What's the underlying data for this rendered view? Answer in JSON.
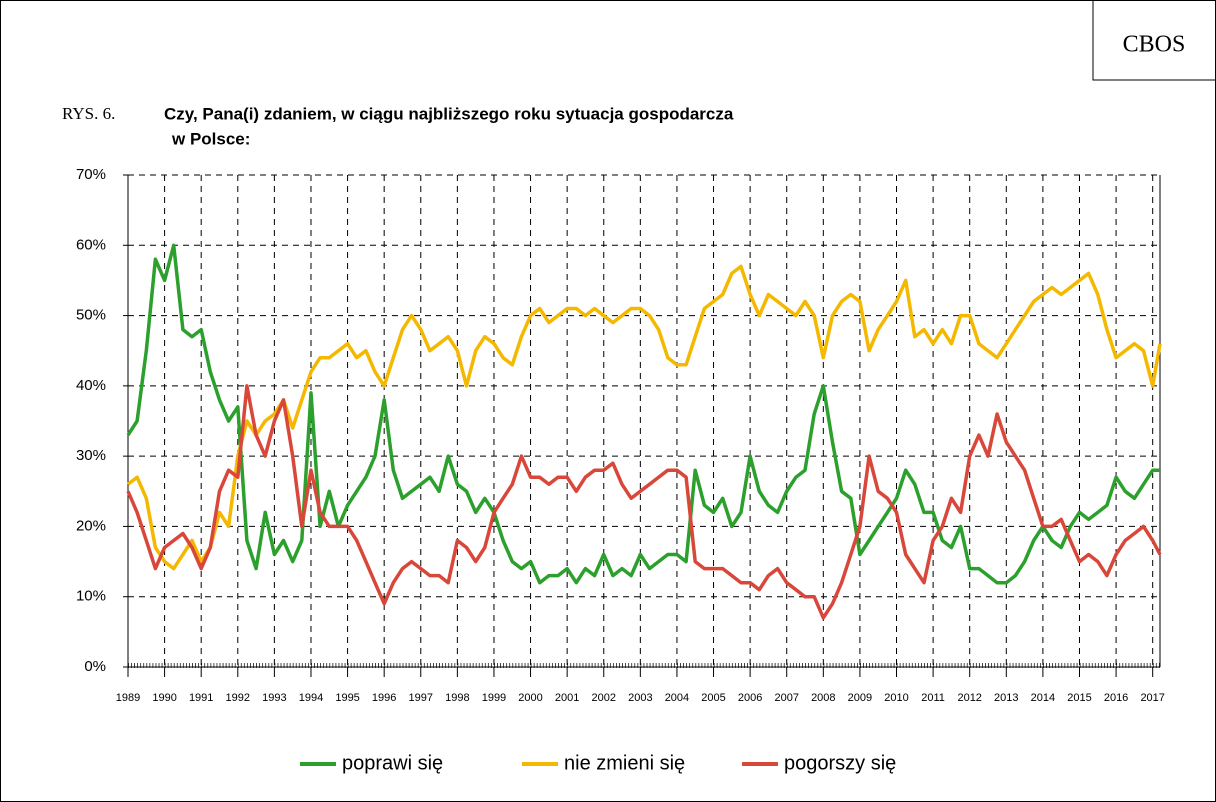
{
  "chart_data": {
    "type": "line",
    "badge": "CBOS",
    "figure_label": "RYS. 6.",
    "title": [
      "Czy, Pana(i) zdaniem, w ciągu najbliższego roku sytuacja gospodarcza",
      "w Polsce:"
    ],
    "x": [
      1989,
      1989.25,
      1989.5,
      1989.75,
      1990,
      1990.25,
      1990.5,
      1990.75,
      1991,
      1991.25,
      1991.5,
      1991.75,
      1992,
      1992.25,
      1992.5,
      1992.75,
      1993,
      1993.25,
      1993.5,
      1993.75,
      1994,
      1994.25,
      1994.5,
      1994.75,
      1995,
      1995.25,
      1995.5,
      1995.75,
      1996,
      1996.25,
      1996.5,
      1996.75,
      1997,
      1997.25,
      1997.5,
      1997.75,
      1998,
      1998.25,
      1998.5,
      1998.75,
      1999,
      1999.25,
      1999.5,
      1999.75,
      2000,
      2000.25,
      2000.5,
      2000.75,
      2001,
      2001.25,
      2001.5,
      2001.75,
      2002,
      2002.25,
      2002.5,
      2002.75,
      2003,
      2003.25,
      2003.5,
      2003.75,
      2004,
      2004.25,
      2004.5,
      2004.75,
      2005,
      2005.25,
      2005.5,
      2005.75,
      2006,
      2006.25,
      2006.5,
      2006.75,
      2007,
      2007.25,
      2007.5,
      2007.75,
      2008,
      2008.25,
      2008.5,
      2008.75,
      2009,
      2009.25,
      2009.5,
      2009.75,
      2010,
      2010.25,
      2010.5,
      2010.75,
      2011,
      2011.25,
      2011.5,
      2011.75,
      2012,
      2012.25,
      2012.5,
      2012.75,
      2013,
      2013.25,
      2013.5,
      2013.75,
      2014,
      2014.25,
      2014.5,
      2014.75,
      2015,
      2015.25,
      2015.5,
      2015.75,
      2016,
      2016.25,
      2016.5,
      2016.75,
      2017,
      2017.2
    ],
    "series": [
      {
        "name": "poprawi się",
        "color": "#2ca02c",
        "values": [
          33,
          35,
          45,
          58,
          55,
          60,
          48,
          47,
          48,
          42,
          38,
          35,
          37,
          18,
          14,
          22,
          16,
          18,
          15,
          18,
          39,
          20,
          25,
          20,
          23,
          25,
          27,
          30,
          38,
          28,
          24,
          25,
          26,
          27,
          25,
          30,
          26,
          25,
          22,
          24,
          22,
          18,
          15,
          14,
          15,
          12,
          13,
          13,
          14,
          12,
          14,
          13,
          16,
          13,
          14,
          13,
          16,
          14,
          15,
          16,
          16,
          15,
          28,
          23,
          22,
          24,
          20,
          22,
          30,
          25,
          23,
          22,
          25,
          27,
          28,
          36,
          40,
          32,
          25,
          24,
          16,
          18,
          20,
          22,
          24,
          28,
          26,
          22,
          22,
          18,
          17,
          20,
          14,
          14,
          13,
          12,
          12,
          13,
          15,
          18,
          20,
          18,
          17,
          20,
          22,
          21,
          22,
          23,
          27,
          25,
          24,
          26,
          28,
          28
        ]
      },
      {
        "name": "nie zmieni się",
        "color": "#f5b800",
        "values": [
          26,
          27,
          24,
          17,
          15,
          14,
          16,
          18,
          15,
          17,
          22,
          20,
          30,
          35,
          33,
          35,
          36,
          38,
          34,
          38,
          42,
          44,
          44,
          45,
          46,
          44,
          45,
          42,
          40,
          44,
          48,
          50,
          48,
          45,
          46,
          47,
          45,
          40,
          45,
          47,
          46,
          44,
          43,
          47,
          50,
          51,
          49,
          50,
          51,
          51,
          50,
          51,
          50,
          49,
          50,
          51,
          51,
          50,
          48,
          44,
          43,
          43,
          47,
          51,
          52,
          53,
          56,
          57,
          53,
          50,
          53,
          52,
          51,
          50,
          52,
          50,
          44,
          50,
          52,
          53,
          52,
          45,
          48,
          50,
          52,
          55,
          47,
          48,
          46,
          48,
          46,
          50,
          50,
          46,
          45,
          44,
          46,
          48,
          50,
          52,
          53,
          54,
          53,
          54,
          55,
          56,
          53,
          48,
          44,
          45,
          46,
          45,
          40,
          46
        ]
      },
      {
        "name": "pogorszy się",
        "color": "#d9473a",
        "values": [
          25,
          22,
          18,
          14,
          17,
          18,
          19,
          17,
          14,
          17,
          25,
          28,
          27,
          40,
          33,
          30,
          35,
          38,
          30,
          20,
          28,
          22,
          20,
          20,
          20,
          18,
          15,
          12,
          9,
          12,
          14,
          15,
          14,
          13,
          13,
          12,
          18,
          17,
          15,
          17,
          22,
          24,
          26,
          30,
          27,
          27,
          26,
          27,
          27,
          25,
          27,
          28,
          28,
          29,
          26,
          24,
          25,
          26,
          27,
          28,
          28,
          27,
          15,
          14,
          14,
          14,
          13,
          12,
          12,
          11,
          13,
          14,
          12,
          11,
          10,
          10,
          7,
          9,
          12,
          16,
          20,
          30,
          25,
          24,
          22,
          16,
          14,
          12,
          18,
          20,
          24,
          22,
          30,
          33,
          30,
          36,
          32,
          30,
          28,
          24,
          20,
          20,
          21,
          18,
          15,
          16,
          15,
          13,
          16,
          18,
          19,
          20,
          18,
          16
        ]
      }
    ],
    "xlim": [
      1989,
      2017.2
    ],
    "xticks": [
      1989,
      1990,
      1991,
      1992,
      1993,
      1994,
      1995,
      1996,
      1997,
      1998,
      1999,
      2000,
      2001,
      2002,
      2003,
      2004,
      2005,
      2006,
      2007,
      2008,
      2009,
      2010,
      2011,
      2012,
      2013,
      2014,
      2015,
      2016,
      2017
    ],
    "ylim": [
      0,
      70
    ],
    "yticks": [
      {
        "value": 0,
        "label": "0%"
      },
      {
        "value": 10,
        "label": "10%"
      },
      {
        "value": 20,
        "label": "20%"
      },
      {
        "value": 30,
        "label": "30%"
      },
      {
        "value": 40,
        "label": "40%"
      },
      {
        "value": 50,
        "label": "50%"
      },
      {
        "value": 60,
        "label": "60%"
      },
      {
        "value": 70,
        "label": "70%"
      }
    ],
    "grid": true,
    "legend": "bottom"
  }
}
